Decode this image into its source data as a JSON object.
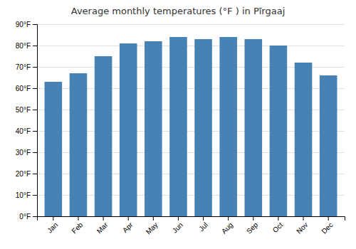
{
  "chart_data": {
    "type": "bar",
    "title": "Average monthly temperatures (°F ) in Pīrgaaj",
    "categories": [
      "Jan",
      "Feb",
      "Mar",
      "Apr",
      "May",
      "Jun",
      "Jul",
      "Aug",
      "Sep",
      "Oct",
      "Nov",
      "Dec"
    ],
    "values": [
      63,
      67,
      75,
      81,
      82,
      84,
      83,
      84,
      83,
      80,
      72,
      66
    ],
    "ylim": [
      0,
      90
    ],
    "yticks": [
      {
        "value": 0,
        "label": "0°F"
      },
      {
        "value": 10,
        "label": "10°F"
      },
      {
        "value": 20,
        "label": "20°F"
      },
      {
        "value": 30,
        "label": "30°F"
      },
      {
        "value": 40,
        "label": "40°F"
      },
      {
        "value": 50,
        "label": "50°F"
      },
      {
        "value": 60,
        "label": "60°F"
      },
      {
        "value": 70,
        "label": "70°F"
      },
      {
        "value": 80,
        "label": "80°F"
      },
      {
        "value": 90,
        "label": "90°F"
      }
    ],
    "grid": true
  }
}
